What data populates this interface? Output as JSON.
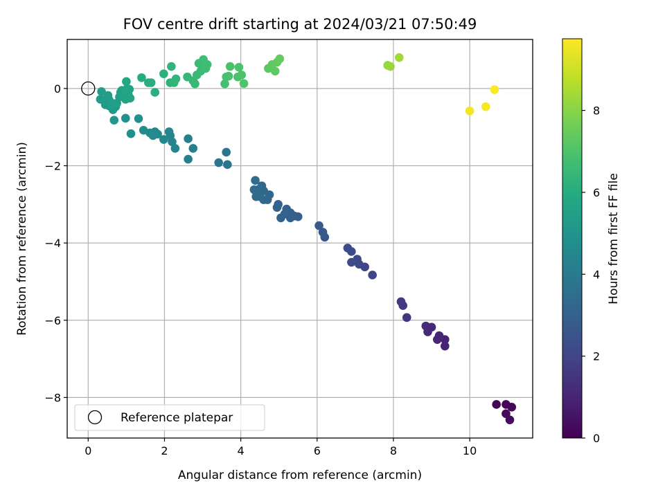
{
  "chart_data": {
    "type": "scatter",
    "title": "FOV centre drift starting at 2024/03/21 07:50:49",
    "xlabel": "Angular distance from reference (arcmin)",
    "ylabel": "Rotation from reference (arcmin)",
    "xlim": [
      -0.55,
      11.65
    ],
    "ylim": [
      -9.05,
      1.27
    ],
    "xticks": [
      0,
      2,
      4,
      6,
      8,
      10
    ],
    "yticks": [
      0,
      -2,
      -4,
      -6,
      -8
    ],
    "xtick_labels": [
      "0",
      "2",
      "4",
      "6",
      "8",
      "10"
    ],
    "ytick_labels": [
      "0",
      "−2",
      "−4",
      "−6",
      "−8"
    ],
    "grid": true,
    "legend": {
      "location": "lower-left",
      "label": "Reference platepar"
    },
    "reference_point": {
      "x": 0,
      "y": 0
    },
    "colorbar": {
      "label": "Hours from first FF file",
      "range": [
        0,
        9.75
      ],
      "ticks": [
        0,
        2,
        4,
        6,
        8
      ],
      "tick_labels": [
        "0",
        "2",
        "4",
        "6",
        "8"
      ],
      "colormap": "viridis"
    },
    "points": [
      {
        "x": 10.7,
        "y": -8.18,
        "h": 0.1
      },
      {
        "x": 10.95,
        "y": -8.18,
        "h": 0.15
      },
      {
        "x": 11.1,
        "y": -8.25,
        "h": 0.2
      },
      {
        "x": 10.95,
        "y": -8.42,
        "h": 0.25
      },
      {
        "x": 11.05,
        "y": -8.58,
        "h": 0.3
      },
      {
        "x": 9.35,
        "y": -6.5,
        "h": 0.9
      },
      {
        "x": 9.35,
        "y": -6.67,
        "h": 0.95
      },
      {
        "x": 9.15,
        "y": -6.5,
        "h": 1.0
      },
      {
        "x": 9.2,
        "y": -6.4,
        "h": 1.05
      },
      {
        "x": 9.0,
        "y": -6.18,
        "h": 1.1
      },
      {
        "x": 8.9,
        "y": -6.3,
        "h": 1.12
      },
      {
        "x": 8.85,
        "y": -6.15,
        "h": 1.15
      },
      {
        "x": 8.35,
        "y": -5.93,
        "h": 1.5
      },
      {
        "x": 8.25,
        "y": -5.62,
        "h": 1.55
      },
      {
        "x": 8.2,
        "y": -5.52,
        "h": 1.6
      },
      {
        "x": 7.45,
        "y": -4.83,
        "h": 2.0
      },
      {
        "x": 7.25,
        "y": -4.62,
        "h": 2.05
      },
      {
        "x": 7.1,
        "y": -4.55,
        "h": 2.1
      },
      {
        "x": 7.05,
        "y": -4.42,
        "h": 2.12
      },
      {
        "x": 6.9,
        "y": -4.5,
        "h": 2.15
      },
      {
        "x": 6.9,
        "y": -4.22,
        "h": 2.2
      },
      {
        "x": 6.8,
        "y": -4.13,
        "h": 2.25
      },
      {
        "x": 6.2,
        "y": -3.85,
        "h": 2.6
      },
      {
        "x": 6.15,
        "y": -3.72,
        "h": 2.65
      },
      {
        "x": 6.05,
        "y": -3.55,
        "h": 2.7
      },
      {
        "x": 5.5,
        "y": -3.32,
        "h": 2.9
      },
      {
        "x": 5.4,
        "y": -3.3,
        "h": 2.92
      },
      {
        "x": 5.3,
        "y": -3.35,
        "h": 2.95
      },
      {
        "x": 5.3,
        "y": -3.22,
        "h": 2.97
      },
      {
        "x": 5.2,
        "y": -3.12,
        "h": 3.0
      },
      {
        "x": 5.15,
        "y": -3.25,
        "h": 3.02
      },
      {
        "x": 5.05,
        "y": -3.35,
        "h": 3.05
      },
      {
        "x": 4.98,
        "y": -3.0,
        "h": 3.07
      },
      {
        "x": 4.95,
        "y": -3.08,
        "h": 3.1
      },
      {
        "x": 4.75,
        "y": -2.75,
        "h": 3.2
      },
      {
        "x": 4.7,
        "y": -2.88,
        "h": 3.22
      },
      {
        "x": 4.6,
        "y": -2.88,
        "h": 3.25
      },
      {
        "x": 4.6,
        "y": -2.65,
        "h": 3.27
      },
      {
        "x": 4.55,
        "y": -2.52,
        "h": 3.3
      },
      {
        "x": 4.5,
        "y": -2.8,
        "h": 3.32
      },
      {
        "x": 4.45,
        "y": -2.62,
        "h": 3.35
      },
      {
        "x": 4.4,
        "y": -2.8,
        "h": 3.37
      },
      {
        "x": 4.35,
        "y": -2.62,
        "h": 3.4
      },
      {
        "x": 4.38,
        "y": -2.38,
        "h": 3.42
      },
      {
        "x": 3.65,
        "y": -1.97,
        "h": 3.75
      },
      {
        "x": 3.62,
        "y": -1.65,
        "h": 3.8
      },
      {
        "x": 3.42,
        "y": -1.92,
        "h": 3.85
      },
      {
        "x": 2.75,
        "y": -1.55,
        "h": 4.1
      },
      {
        "x": 2.62,
        "y": -1.83,
        "h": 4.15
      },
      {
        "x": 2.62,
        "y": -1.3,
        "h": 4.2
      },
      {
        "x": 2.28,
        "y": -1.55,
        "h": 4.35
      },
      {
        "x": 2.2,
        "y": -1.38,
        "h": 4.4
      },
      {
        "x": 2.15,
        "y": -1.22,
        "h": 4.42
      },
      {
        "x": 2.12,
        "y": -1.12,
        "h": 4.45
      },
      {
        "x": 1.98,
        "y": -1.32,
        "h": 4.5
      },
      {
        "x": 1.82,
        "y": -1.18,
        "h": 4.55
      },
      {
        "x": 1.75,
        "y": -1.12,
        "h": 4.58
      },
      {
        "x": 1.7,
        "y": -1.22,
        "h": 4.6
      },
      {
        "x": 1.62,
        "y": -1.15,
        "h": 4.62
      },
      {
        "x": 1.45,
        "y": -1.08,
        "h": 4.7
      },
      {
        "x": 1.32,
        "y": -0.78,
        "h": 4.8
      },
      {
        "x": 1.12,
        "y": -1.17,
        "h": 4.85
      },
      {
        "x": 0.98,
        "y": -0.77,
        "h": 4.9
      },
      {
        "x": 0.68,
        "y": -0.82,
        "h": 5.1
      },
      {
        "x": 0.65,
        "y": -0.55,
        "h": 5.15
      },
      {
        "x": 0.72,
        "y": -0.47,
        "h": 5.2
      },
      {
        "x": 0.62,
        "y": -0.38,
        "h": 5.22
      },
      {
        "x": 0.55,
        "y": -0.45,
        "h": 5.25
      },
      {
        "x": 0.5,
        "y": -0.35,
        "h": 5.27
      },
      {
        "x": 0.45,
        "y": -0.42,
        "h": 5.3
      },
      {
        "x": 0.4,
        "y": -0.3,
        "h": 5.32
      },
      {
        "x": 0.32,
        "y": -0.28,
        "h": 5.35
      },
      {
        "x": 0.35,
        "y": -0.08,
        "h": 5.37
      },
      {
        "x": 0.52,
        "y": -0.18,
        "h": 5.4
      },
      {
        "x": 0.55,
        "y": -0.3,
        "h": 5.42
      },
      {
        "x": 0.6,
        "y": -0.42,
        "h": 5.45
      },
      {
        "x": 0.75,
        "y": -0.38,
        "h": 5.47
      },
      {
        "x": 0.82,
        "y": -0.22,
        "h": 5.5
      },
      {
        "x": 0.85,
        "y": -0.1,
        "h": 5.52
      },
      {
        "x": 0.88,
        "y": -0.05,
        "h": 5.55
      },
      {
        "x": 0.92,
        "y": -0.2,
        "h": 5.57
      },
      {
        "x": 0.95,
        "y": -0.12,
        "h": 5.6
      },
      {
        "x": 1.0,
        "y": -0.05,
        "h": 5.62
      },
      {
        "x": 1.05,
        "y": -0.15,
        "h": 5.65
      },
      {
        "x": 1.08,
        "y": -0.02,
        "h": 5.67
      },
      {
        "x": 1.1,
        "y": -0.25,
        "h": 5.7
      },
      {
        "x": 0.98,
        "y": -0.28,
        "h": 5.72
      },
      {
        "x": 1.02,
        "y": 0.0,
        "h": 5.75
      },
      {
        "x": 1.0,
        "y": 0.18,
        "h": 5.8
      },
      {
        "x": 1.4,
        "y": 0.28,
        "h": 6.0
      },
      {
        "x": 1.58,
        "y": 0.15,
        "h": 6.05
      },
      {
        "x": 1.65,
        "y": 0.15,
        "h": 6.08
      },
      {
        "x": 1.75,
        "y": -0.1,
        "h": 6.1
      },
      {
        "x": 1.98,
        "y": 0.38,
        "h": 6.2
      },
      {
        "x": 2.15,
        "y": 0.15,
        "h": 6.25
      },
      {
        "x": 2.18,
        "y": 0.57,
        "h": 6.3
      },
      {
        "x": 2.25,
        "y": 0.15,
        "h": 6.32
      },
      {
        "x": 2.3,
        "y": 0.25,
        "h": 6.35
      },
      {
        "x": 2.6,
        "y": 0.3,
        "h": 6.45
      },
      {
        "x": 2.75,
        "y": 0.2,
        "h": 6.5
      },
      {
        "x": 2.8,
        "y": 0.12,
        "h": 6.52
      },
      {
        "x": 2.85,
        "y": 0.35,
        "h": 6.55
      },
      {
        "x": 2.9,
        "y": 0.65,
        "h": 6.58
      },
      {
        "x": 2.95,
        "y": 0.45,
        "h": 6.6
      },
      {
        "x": 3.0,
        "y": 0.58,
        "h": 6.62
      },
      {
        "x": 3.02,
        "y": 0.75,
        "h": 6.65
      },
      {
        "x": 3.08,
        "y": 0.52,
        "h": 6.67
      },
      {
        "x": 3.12,
        "y": 0.62,
        "h": 6.7
      },
      {
        "x": 3.58,
        "y": 0.12,
        "h": 6.85
      },
      {
        "x": 3.62,
        "y": 0.3,
        "h": 6.87
      },
      {
        "x": 3.68,
        "y": 0.32,
        "h": 6.9
      },
      {
        "x": 3.72,
        "y": 0.57,
        "h": 6.92
      },
      {
        "x": 3.92,
        "y": 0.3,
        "h": 6.95
      },
      {
        "x": 3.95,
        "y": 0.55,
        "h": 6.97
      },
      {
        "x": 4.02,
        "y": 0.35,
        "h": 7.0
      },
      {
        "x": 4.08,
        "y": 0.13,
        "h": 7.02
      },
      {
        "x": 4.72,
        "y": 0.52,
        "h": 7.25
      },
      {
        "x": 4.82,
        "y": 0.62,
        "h": 7.3
      },
      {
        "x": 4.9,
        "y": 0.45,
        "h": 7.32
      },
      {
        "x": 4.95,
        "y": 0.68,
        "h": 7.35
      },
      {
        "x": 5.02,
        "y": 0.77,
        "h": 7.4
      },
      {
        "x": 7.85,
        "y": 0.6,
        "h": 8.2
      },
      {
        "x": 7.92,
        "y": 0.57,
        "h": 8.25
      },
      {
        "x": 8.15,
        "y": 0.8,
        "h": 8.35
      },
      {
        "x": 10.0,
        "y": -0.58,
        "h": 9.6
      },
      {
        "x": 10.42,
        "y": -0.47,
        "h": 9.65
      },
      {
        "x": 10.65,
        "y": -0.03,
        "h": 9.7
      }
    ]
  }
}
